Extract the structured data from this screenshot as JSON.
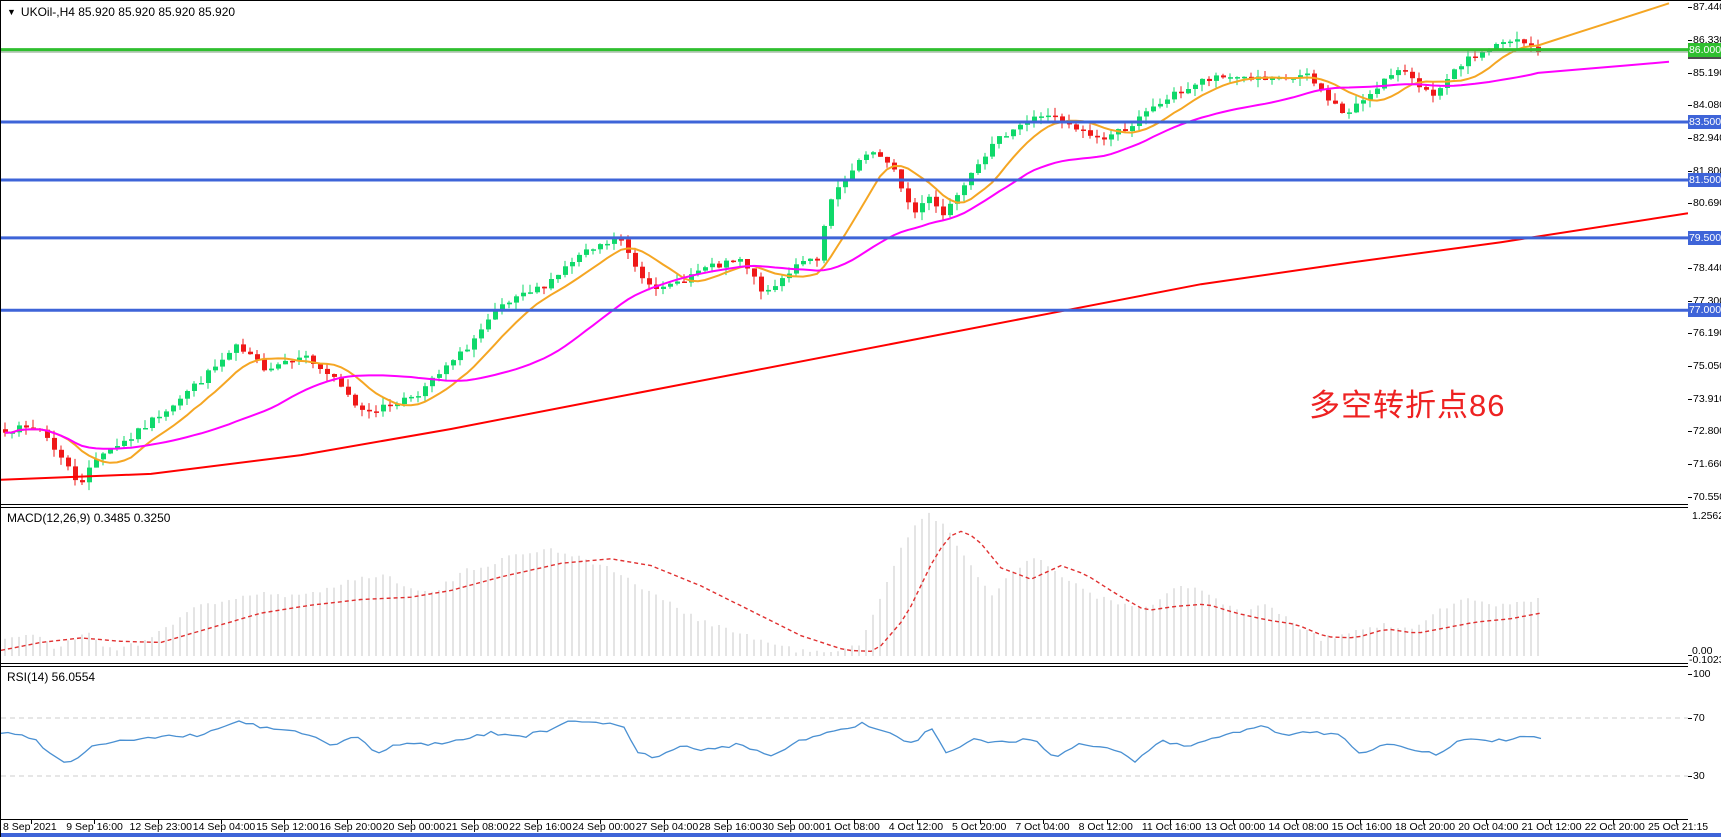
{
  "window": {
    "symbol_dropdown_icon": "▼",
    "symbol_header": "UKOil-,H4  85.920 85.920 85.920 85.920"
  },
  "annotation": {
    "text": "多空转折点86",
    "color": "#ee2222"
  },
  "colors": {
    "up": "#0fd96a",
    "down": "#ef1818",
    "ma_fast": "#f5a623",
    "ma_mid": "#ff00ff",
    "ma_slow": "#ff0000",
    "hline_blue": "#3e64d8",
    "hline_green": "#2fbf2f",
    "price_line": "#7f9f7f",
    "macd_bar": "#c9c9c9",
    "macd_signal": "#e03030",
    "rsi_line": "#4a90d2",
    "level_dash": "#cccccc",
    "bottom_strip": "#3e64d8"
  },
  "price_scale": {
    "ticks": [
      "87.440",
      "86.330",
      "85.190",
      "84.080",
      "82.940",
      "81.800",
      "80.690",
      "79.500",
      "78.440",
      "77.300",
      "76.190",
      "75.050",
      "73.910",
      "72.800",
      "71.660",
      "70.550"
    ],
    "badges": [
      {
        "label": "85.920",
        "price": 85.92,
        "bg": "#4d4d4d"
      },
      {
        "label": "86.000",
        "price": 86.0,
        "bg": "#2fbf2f"
      },
      {
        "label": "83.500",
        "price": 83.5,
        "bg": "#3e64d8"
      },
      {
        "label": "81.500",
        "price": 81.5,
        "bg": "#3e64d8"
      },
      {
        "label": "79.500",
        "price": 79.5,
        "bg": "#3e64d8"
      },
      {
        "label": "77.000",
        "price": 77.0,
        "bg": "#3e64d8"
      }
    ]
  },
  "indicators": {
    "macd": {
      "label": "MACD(12,26,9) 0.3485 0.3250",
      "scale_top": "1.2562",
      "scale_zero": "0.00",
      "scale_bottom": "-0.1023"
    },
    "rsi": {
      "label": "RSI(14) 56.0554",
      "scale": [
        "100",
        "70",
        "30"
      ]
    }
  },
  "x_axis": {
    "labels": [
      "8 Sep 2021",
      "9 Sep 16:00",
      "12 Sep 23:00",
      "14 Sep 04:00",
      "15 Sep 12:00",
      "16 Sep 20:00",
      "20 Sep 00:00",
      "21 Sep 08:00",
      "22 Sep 16:00",
      "24 Sep 00:00",
      "27 Sep 04:00",
      "28 Sep 16:00",
      "30 Sep 00:00",
      "1 Oct 08:00",
      "4 Oct 12:00",
      "5 Oct 20:00",
      "7 Oct 04:00",
      "8 Oct 12:00",
      "11 Oct 16:00",
      "13 Oct 00:00",
      "14 Oct 08:00",
      "15 Oct 16:00",
      "18 Oct 20:00",
      "20 Oct 04:00",
      "21 Oct 12:00",
      "22 Oct 20:00",
      "25 Oct 21:15"
    ]
  },
  "chart_data": [
    {
      "type": "candlestick",
      "name": "UKOil- H4 price",
      "symbol": "UKOil-",
      "timeframe": "H4",
      "y_range": [
        70.31,
        87.68
      ],
      "last_close": 85.92,
      "hlines": [
        {
          "price": 86.0,
          "color": "#2fbf2f",
          "width": 3
        },
        {
          "price": 85.92,
          "color": "#7f9f7f",
          "width": 1
        },
        {
          "price": 83.5,
          "color": "#3e64d8",
          "width": 3
        },
        {
          "price": 81.5,
          "color": "#3e64d8",
          "width": 3
        },
        {
          "price": 79.5,
          "color": "#3e64d8",
          "width": 3
        },
        {
          "price": 77.0,
          "color": "#3e64d8",
          "width": 3
        }
      ],
      "close_anchors": [
        [
          0,
          72.9
        ],
        [
          40,
          72.9
        ],
        [
          62,
          71.8
        ],
        [
          78,
          71.0
        ],
        [
          100,
          72.1
        ],
        [
          130,
          72.6
        ],
        [
          165,
          73.6
        ],
        [
          200,
          74.6
        ],
        [
          235,
          75.7
        ],
        [
          265,
          75.0
        ],
        [
          300,
          75.5
        ],
        [
          330,
          74.7
        ],
        [
          358,
          73.6
        ],
        [
          380,
          73.6
        ],
        [
          420,
          74.2
        ],
        [
          460,
          75.5
        ],
        [
          500,
          77.1
        ],
        [
          540,
          77.8
        ],
        [
          580,
          78.9
        ],
        [
          618,
          79.5
        ],
        [
          640,
          78.2
        ],
        [
          662,
          77.7
        ],
        [
          700,
          78.4
        ],
        [
          740,
          78.7
        ],
        [
          765,
          77.5
        ],
        [
          800,
          78.8
        ],
        [
          818,
          78.6
        ],
        [
          826,
          80.6
        ],
        [
          845,
          81.5
        ],
        [
          870,
          82.6
        ],
        [
          895,
          81.7
        ],
        [
          912,
          80.3
        ],
        [
          928,
          81.0
        ],
        [
          942,
          80.3
        ],
        [
          975,
          82.1
        ],
        [
          1010,
          83.3
        ],
        [
          1045,
          83.8
        ],
        [
          1070,
          83.3
        ],
        [
          1100,
          82.9
        ],
        [
          1130,
          83.4
        ],
        [
          1165,
          84.3
        ],
        [
          1200,
          84.9
        ],
        [
          1235,
          85.1
        ],
        [
          1270,
          84.9
        ],
        [
          1305,
          85.1
        ],
        [
          1345,
          83.7
        ],
        [
          1380,
          84.9
        ],
        [
          1405,
          85.3
        ],
        [
          1432,
          84.3
        ],
        [
          1460,
          85.5
        ],
        [
          1490,
          86.1
        ],
        [
          1516,
          86.3
        ],
        [
          1540,
          85.92
        ]
      ],
      "ma_fast_period": 9,
      "ma_mid_period": 30,
      "ma_slow_anchors": [
        [
          0,
          71.15
        ],
        [
          150,
          71.35
        ],
        [
          300,
          72.0
        ],
        [
          450,
          72.9
        ],
        [
          600,
          73.9
        ],
        [
          750,
          74.9
        ],
        [
          900,
          75.9
        ],
        [
          1050,
          76.9
        ],
        [
          1200,
          77.9
        ],
        [
          1350,
          78.65
        ],
        [
          1500,
          79.35
        ],
        [
          1687,
          80.35
        ]
      ]
    },
    {
      "type": "bar",
      "name": "MACD(12,26,9)",
      "readout": [
        0.3485,
        0.325
      ],
      "y_top_value": 1.2562,
      "y_bottom_value": -0.1023,
      "hist_anchors": [
        [
          0,
          0.15
        ],
        [
          30,
          0.2
        ],
        [
          55,
          0.06
        ],
        [
          85,
          0.22
        ],
        [
          110,
          0.05
        ],
        [
          140,
          0.12
        ],
        [
          200,
          0.45
        ],
        [
          255,
          0.55
        ],
        [
          300,
          0.52
        ],
        [
          340,
          0.65
        ],
        [
          380,
          0.72
        ],
        [
          430,
          0.55
        ],
        [
          465,
          0.75
        ],
        [
          510,
          0.88
        ],
        [
          545,
          0.95
        ],
        [
          580,
          0.88
        ],
        [
          620,
          0.72
        ],
        [
          660,
          0.5
        ],
        [
          700,
          0.32
        ],
        [
          745,
          0.18
        ],
        [
          790,
          0.06
        ],
        [
          830,
          0.02
        ],
        [
          860,
          0.1
        ],
        [
          880,
          0.55
        ],
        [
          905,
          1.05
        ],
        [
          925,
          1.26
        ],
        [
          945,
          1.15
        ],
        [
          970,
          0.8
        ],
        [
          990,
          0.55
        ],
        [
          1015,
          0.75
        ],
        [
          1035,
          0.88
        ],
        [
          1060,
          0.72
        ],
        [
          1090,
          0.55
        ],
        [
          1120,
          0.45
        ],
        [
          1145,
          0.42
        ],
        [
          1170,
          0.58
        ],
        [
          1190,
          0.62
        ],
        [
          1215,
          0.5
        ],
        [
          1240,
          0.38
        ],
        [
          1265,
          0.45
        ],
        [
          1290,
          0.3
        ],
        [
          1320,
          0.15
        ],
        [
          1350,
          0.2
        ],
        [
          1380,
          0.28
        ],
        [
          1410,
          0.22
        ],
        [
          1440,
          0.42
        ],
        [
          1465,
          0.5
        ],
        [
          1490,
          0.45
        ],
        [
          1515,
          0.48
        ],
        [
          1540,
          0.5
        ]
      ],
      "signal_anchors": [
        [
          0,
          0.05
        ],
        [
          40,
          0.12
        ],
        [
          80,
          0.16
        ],
        [
          120,
          0.13
        ],
        [
          160,
          0.12
        ],
        [
          210,
          0.25
        ],
        [
          260,
          0.38
        ],
        [
          310,
          0.45
        ],
        [
          360,
          0.5
        ],
        [
          410,
          0.52
        ],
        [
          450,
          0.58
        ],
        [
          500,
          0.7
        ],
        [
          560,
          0.82
        ],
        [
          610,
          0.86
        ],
        [
          650,
          0.8
        ],
        [
          700,
          0.62
        ],
        [
          750,
          0.4
        ],
        [
          800,
          0.18
        ],
        [
          845,
          0.05
        ],
        [
          875,
          0.04
        ],
        [
          905,
          0.35
        ],
        [
          935,
          0.9
        ],
        [
          955,
          1.12
        ],
        [
          975,
          1.05
        ],
        [
          1000,
          0.78
        ],
        [
          1030,
          0.68
        ],
        [
          1060,
          0.8
        ],
        [
          1085,
          0.72
        ],
        [
          1115,
          0.55
        ],
        [
          1145,
          0.4
        ],
        [
          1175,
          0.44
        ],
        [
          1205,
          0.46
        ],
        [
          1235,
          0.38
        ],
        [
          1265,
          0.32
        ],
        [
          1295,
          0.28
        ],
        [
          1325,
          0.17
        ],
        [
          1355,
          0.16
        ],
        [
          1385,
          0.24
        ],
        [
          1415,
          0.2
        ],
        [
          1445,
          0.25
        ],
        [
          1475,
          0.3
        ],
        [
          1510,
          0.33
        ],
        [
          1540,
          0.38
        ]
      ]
    },
    {
      "type": "line",
      "name": "RSI(14)",
      "value": 56.0554,
      "levels": [
        70,
        30
      ],
      "y_range": [
        0,
        100
      ],
      "anchors": [
        [
          0,
          60
        ],
        [
          30,
          57
        ],
        [
          65,
          38
        ],
        [
          95,
          52
        ],
        [
          130,
          55
        ],
        [
          165,
          57
        ],
        [
          200,
          58
        ],
        [
          235,
          68
        ],
        [
          265,
          63
        ],
        [
          300,
          60
        ],
        [
          330,
          52
        ],
        [
          360,
          57
        ],
        [
          375,
          44
        ],
        [
          395,
          52
        ],
        [
          430,
          52
        ],
        [
          460,
          55
        ],
        [
          490,
          60
        ],
        [
          520,
          57
        ],
        [
          550,
          62
        ],
        [
          575,
          69
        ],
        [
          600,
          66
        ],
        [
          622,
          65
        ],
        [
          638,
          46
        ],
        [
          655,
          42
        ],
        [
          680,
          50
        ],
        [
          710,
          48
        ],
        [
          740,
          52
        ],
        [
          770,
          44
        ],
        [
          800,
          55
        ],
        [
          830,
          60
        ],
        [
          860,
          66
        ],
        [
          885,
          60
        ],
        [
          912,
          52
        ],
        [
          930,
          63
        ],
        [
          945,
          45
        ],
        [
          970,
          55
        ],
        [
          1000,
          53
        ],
        [
          1030,
          56
        ],
        [
          1055,
          42
        ],
        [
          1080,
          52
        ],
        [
          1110,
          50
        ],
        [
          1135,
          40
        ],
        [
          1160,
          55
        ],
        [
          1185,
          50
        ],
        [
          1210,
          57
        ],
        [
          1240,
          60
        ],
        [
          1260,
          65
        ],
        [
          1280,
          58
        ],
        [
          1310,
          61
        ],
        [
          1340,
          58
        ],
        [
          1360,
          45
        ],
        [
          1385,
          52
        ],
        [
          1410,
          48
        ],
        [
          1435,
          45
        ],
        [
          1465,
          56
        ],
        [
          1490,
          53
        ],
        [
          1515,
          57
        ],
        [
          1540,
          56
        ]
      ]
    }
  ]
}
